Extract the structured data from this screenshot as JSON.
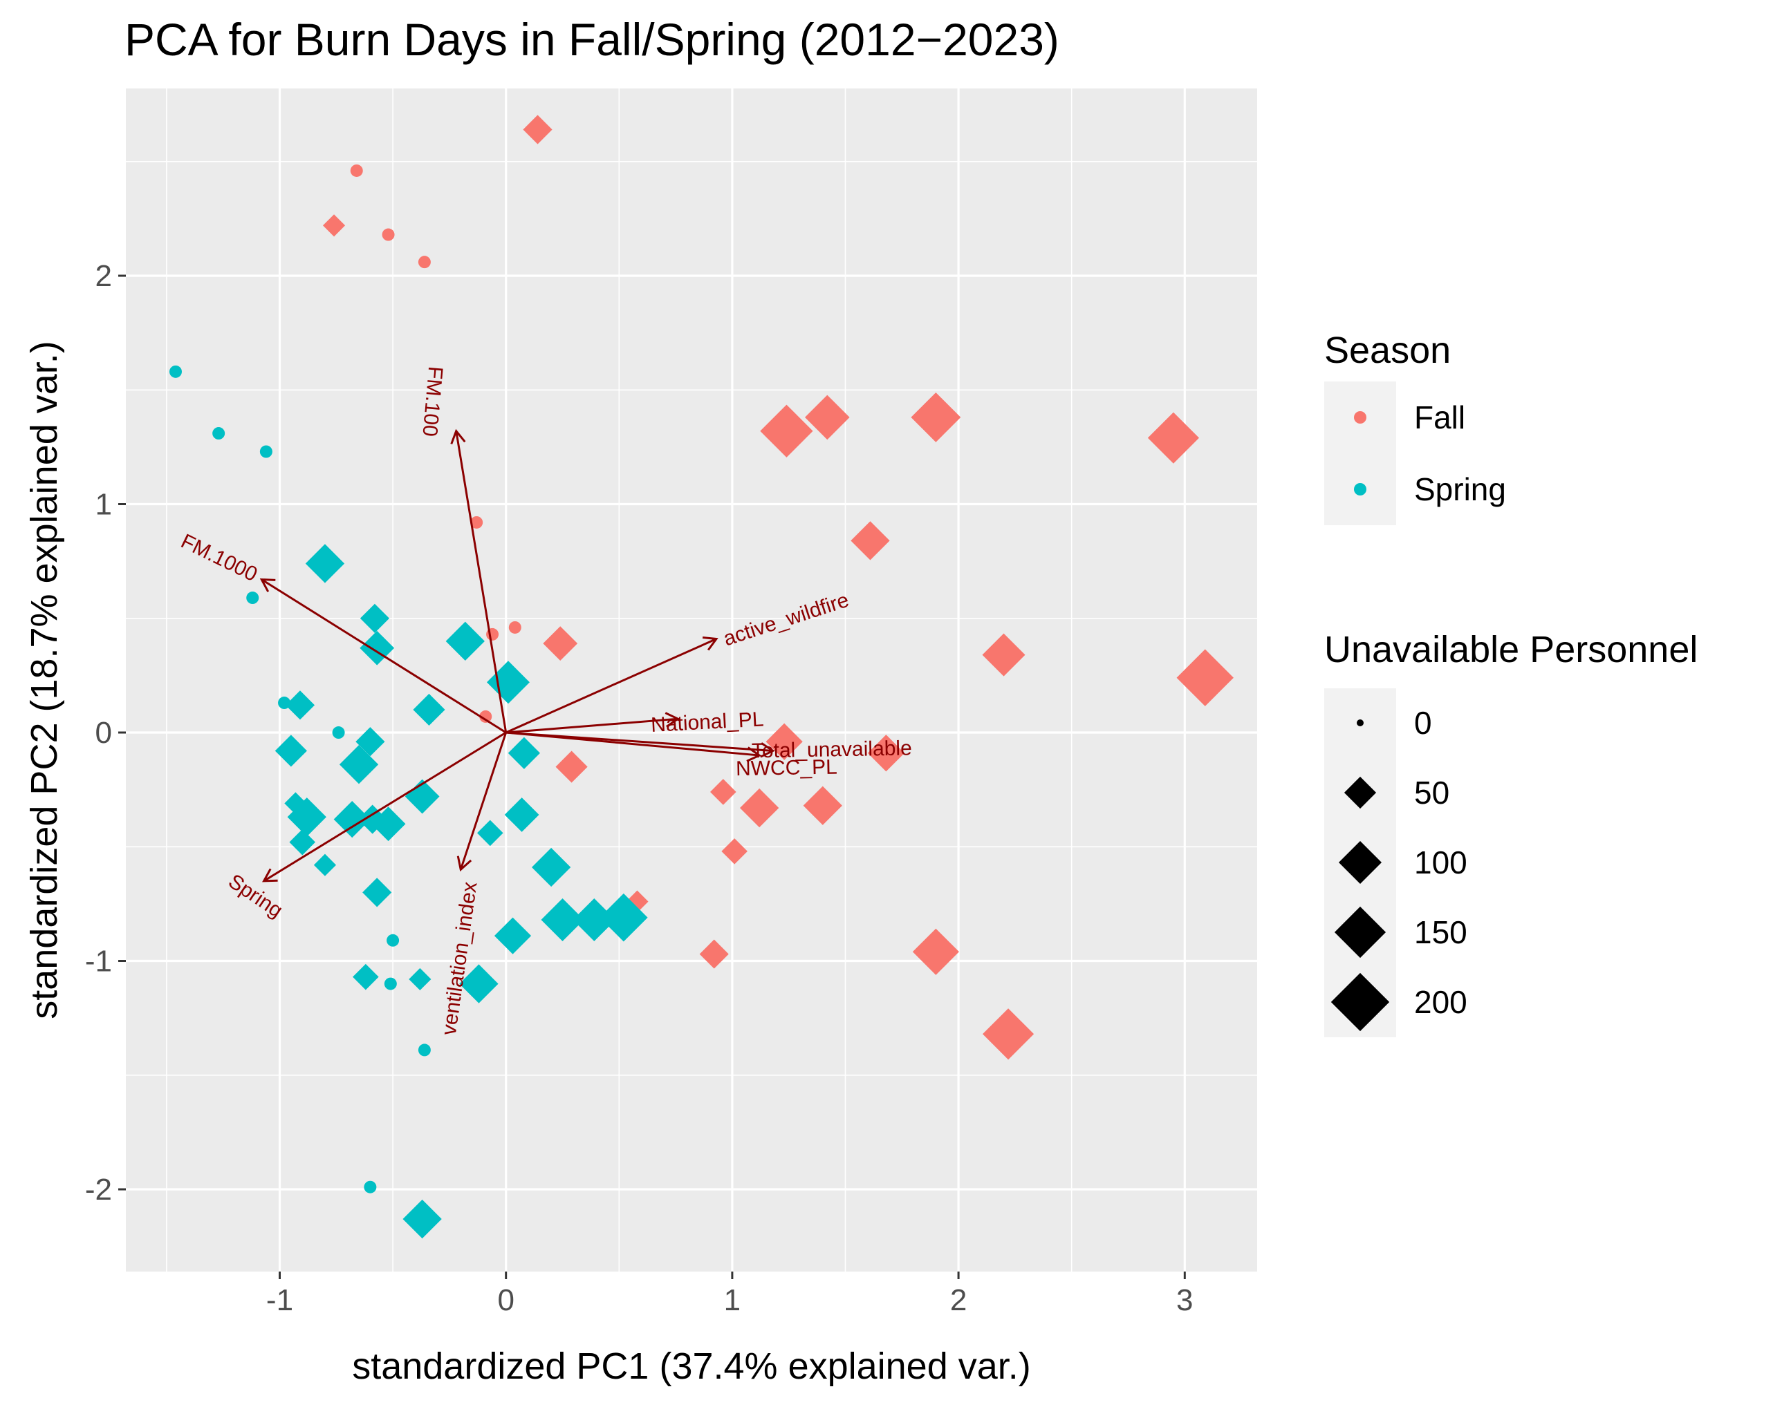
{
  "chart_data": {
    "type": "scatter",
    "title": "PCA for Burn Days in Fall/Spring (2012−2023)",
    "xlabel": "standardized PC1 (37.4% explained var.)",
    "ylabel": "standardized PC2 (18.7% explained var.)",
    "xlim": [
      -1.68,
      3.32
    ],
    "ylim": [
      -2.36,
      2.82
    ],
    "xticks": [
      -1,
      0,
      1,
      2,
      3
    ],
    "yticks": [
      -2,
      -1,
      0,
      1,
      2
    ],
    "xtick_labels": [
      "-1",
      "0",
      "1",
      "2",
      "3"
    ],
    "ytick_labels": [
      "-2",
      "-1",
      "0",
      "1",
      "2"
    ],
    "grid": true,
    "colors": {
      "Fall": "#F8766D",
      "Spring": "#00BFC4",
      "arrow": "#8B0000",
      "panel": "#EBEBEB",
      "grid": "#FFFFFF",
      "legend_key": "#F2F2F2"
    },
    "series": [
      {
        "name": "Fall",
        "points": [
          {
            "x": 0.14,
            "y": 2.64,
            "p": 40
          },
          {
            "x": -0.66,
            "y": 2.46,
            "p": 0
          },
          {
            "x": -0.76,
            "y": 2.22,
            "p": 20
          },
          {
            "x": -0.52,
            "y": 2.18,
            "p": 0
          },
          {
            "x": -0.36,
            "y": 2.06,
            "p": 0
          },
          {
            "x": 1.24,
            "y": 1.32,
            "p": 160
          },
          {
            "x": 1.42,
            "y": 1.38,
            "p": 110
          },
          {
            "x": 1.9,
            "y": 1.38,
            "p": 140
          },
          {
            "x": 2.95,
            "y": 1.29,
            "p": 150
          },
          {
            "x": -0.13,
            "y": 0.92,
            "p": 0
          },
          {
            "x": 1.61,
            "y": 0.84,
            "p": 80
          },
          {
            "x": 0.04,
            "y": 0.46,
            "p": 0
          },
          {
            "x": -0.06,
            "y": 0.43,
            "p": 0
          },
          {
            "x": 0.24,
            "y": 0.39,
            "p": 60
          },
          {
            "x": -0.09,
            "y": 0.07,
            "p": 0
          },
          {
            "x": 2.2,
            "y": 0.34,
            "p": 100
          },
          {
            "x": 3.09,
            "y": 0.24,
            "p": 190
          },
          {
            "x": 1.23,
            "y": -0.04,
            "p": 70
          },
          {
            "x": 1.68,
            "y": -0.09,
            "p": 70
          },
          {
            "x": 0.29,
            "y": -0.15,
            "p": 50
          },
          {
            "x": 0.96,
            "y": -0.26,
            "p": 30
          },
          {
            "x": 1.12,
            "y": -0.33,
            "p": 80
          },
          {
            "x": 1.4,
            "y": -0.32,
            "p": 80
          },
          {
            "x": 1.01,
            "y": -0.52,
            "p": 30
          },
          {
            "x": 0.58,
            "y": -0.74,
            "p": 20
          },
          {
            "x": 0.92,
            "y": -0.97,
            "p": 40
          },
          {
            "x": 1.9,
            "y": -0.96,
            "p": 120
          },
          {
            "x": 2.22,
            "y": -1.32,
            "p": 150
          }
        ]
      },
      {
        "name": "Spring",
        "points": [
          {
            "x": -1.46,
            "y": 1.58,
            "p": 0
          },
          {
            "x": -1.27,
            "y": 1.31,
            "p": 0
          },
          {
            "x": -1.06,
            "y": 1.23,
            "p": 0
          },
          {
            "x": -0.8,
            "y": 0.74,
            "p": 80
          },
          {
            "x": -1.12,
            "y": 0.59,
            "p": 0
          },
          {
            "x": -0.58,
            "y": 0.5,
            "p": 40
          },
          {
            "x": -0.57,
            "y": 0.37,
            "p": 60
          },
          {
            "x": -0.18,
            "y": 0.4,
            "p": 80
          },
          {
            "x": 0.01,
            "y": 0.22,
            "p": 100
          },
          {
            "x": -0.34,
            "y": 0.1,
            "p": 50
          },
          {
            "x": -0.98,
            "y": 0.13,
            "p": 0
          },
          {
            "x": -0.91,
            "y": 0.12,
            "p": 40
          },
          {
            "x": -0.74,
            "y": 0.0,
            "p": 0
          },
          {
            "x": -0.6,
            "y": -0.04,
            "p": 40
          },
          {
            "x": -0.95,
            "y": -0.08,
            "p": 50
          },
          {
            "x": -0.65,
            "y": -0.14,
            "p": 80
          },
          {
            "x": 0.08,
            "y": -0.09,
            "p": 50
          },
          {
            "x": -0.93,
            "y": -0.31,
            "p": 20
          },
          {
            "x": -0.88,
            "y": -0.37,
            "p": 80
          },
          {
            "x": -0.68,
            "y": -0.38,
            "p": 70
          },
          {
            "x": -0.59,
            "y": -0.38,
            "p": 40
          },
          {
            "x": -0.52,
            "y": -0.4,
            "p": 60
          },
          {
            "x": -0.37,
            "y": -0.28,
            "p": 60
          },
          {
            "x": -0.9,
            "y": -0.48,
            "p": 30
          },
          {
            "x": -0.07,
            "y": -0.44,
            "p": 30
          },
          {
            "x": 0.07,
            "y": -0.36,
            "p": 60
          },
          {
            "x": -0.8,
            "y": -0.58,
            "p": 20
          },
          {
            "x": 0.2,
            "y": -0.59,
            "p": 80
          },
          {
            "x": -0.57,
            "y": -0.7,
            "p": 40
          },
          {
            "x": 0.25,
            "y": -0.82,
            "p": 100
          },
          {
            "x": 0.39,
            "y": -0.82,
            "p": 100
          },
          {
            "x": 0.52,
            "y": -0.81,
            "p": 130
          },
          {
            "x": 0.03,
            "y": -0.89,
            "p": 70
          },
          {
            "x": -0.5,
            "y": -0.91,
            "p": 0
          },
          {
            "x": -0.62,
            "y": -1.07,
            "p": 30
          },
          {
            "x": -0.51,
            "y": -1.1,
            "p": 0
          },
          {
            "x": -0.38,
            "y": -1.08,
            "p": 20
          },
          {
            "x": -0.12,
            "y": -1.1,
            "p": 80
          },
          {
            "x": -0.36,
            "y": -1.39,
            "p": 0
          },
          {
            "x": -0.6,
            "y": -1.99,
            "p": 0
          },
          {
            "x": -0.37,
            "y": -2.13,
            "p": 80
          }
        ]
      }
    ],
    "loadings": [
      {
        "name": "FM.100",
        "x": -0.22,
        "y": 1.32,
        "label_x": -0.33,
        "label_y": 1.45,
        "label_angle": 95
      },
      {
        "name": "FM.1000",
        "x": -1.08,
        "y": 0.67,
        "label_x": -1.27,
        "label_y": 0.76,
        "label_angle": 26
      },
      {
        "name": "active_wildfire",
        "x": 0.93,
        "y": 0.41,
        "label_x": 1.24,
        "label_y": 0.49,
        "label_angle": -18
      },
      {
        "name": "National_PL",
        "x": 0.76,
        "y": 0.06,
        "label_x": 0.89,
        "label_y": 0.04,
        "label_angle": -3
      },
      {
        "name": "Total_unavailable",
        "x": 1.18,
        "y": -0.08,
        "label_x": 1.44,
        "label_y": -0.08,
        "label_angle": -1
      },
      {
        "name": "NWCC_PL",
        "x": 1.12,
        "y": -0.1,
        "label_x": 1.24,
        "label_y": -0.16,
        "label_angle": -1
      },
      {
        "name": "Spring",
        "x": -1.07,
        "y": -0.65,
        "label_x": -1.11,
        "label_y": -0.72,
        "label_angle": 34
      },
      {
        "name": "ventilation_index",
        "x": -0.2,
        "y": -0.6,
        "label_x": -0.2,
        "label_y": -0.99,
        "label_angle": -82
      }
    ]
  },
  "legend": {
    "season_title": "Season",
    "season_items": [
      {
        "label": "Fall",
        "color": "#F8766D"
      },
      {
        "label": "Spring",
        "color": "#00BFC4"
      }
    ],
    "size_title": "Unavailable Personnel",
    "size_items": [
      {
        "label": "0",
        "value": 0
      },
      {
        "label": "50",
        "value": 50
      },
      {
        "label": "100",
        "value": 100
      },
      {
        "label": "150",
        "value": 150
      },
      {
        "label": "200",
        "value": 200
      }
    ]
  }
}
